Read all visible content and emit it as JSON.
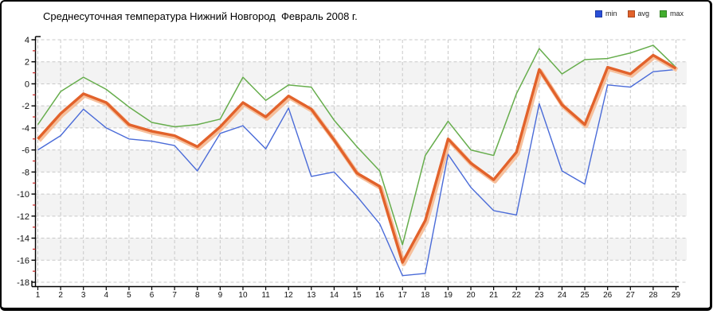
{
  "chart_title": "Среднесуточная температура Нижний Новгород  Февраль 2008 г.",
  "legend": {
    "items": [
      {
        "label": "min",
        "swatch_color": "#2a4fd8"
      },
      {
        "label": "avg",
        "swatch_color": "#e2622b"
      },
      {
        "label": "max",
        "swatch_color": "#42ae2e"
      }
    ]
  },
  "axes": {
    "y_tick_labels": [
      "4",
      "2",
      "0",
      "-2",
      "-4",
      "-6",
      "-8",
      "-10",
      "-12",
      "-14",
      "-16",
      "-18"
    ],
    "x_tick_labels": [
      "1",
      "2",
      "3",
      "4",
      "5",
      "6",
      "7",
      "8",
      "9",
      "10",
      "11",
      "12",
      "13",
      "14",
      "15",
      "16",
      "17",
      "18",
      "19",
      "20",
      "21",
      "22",
      "23",
      "24",
      "25",
      "26",
      "27",
      "28",
      "29"
    ]
  },
  "colors": {
    "min_line": "#4a6bd8",
    "avg_line": "#e2622b",
    "avg_halo": "#f6c09c",
    "max_line": "#66ad4c",
    "grid_line": "#c9c9c9",
    "band_gray": "#f3f3f3",
    "axis": "#000000",
    "minor_tick": "#cc2222"
  },
  "chart_data": {
    "type": "line",
    "title": "Среднесуточная температура Нижний Новгород  Февраль 2008 г.",
    "xlabel": "",
    "ylabel": "",
    "x": [
      1,
      2,
      3,
      4,
      5,
      6,
      7,
      8,
      9,
      10,
      11,
      12,
      13,
      14,
      15,
      16,
      17,
      18,
      19,
      20,
      21,
      22,
      23,
      24,
      25,
      26,
      27,
      28,
      29
    ],
    "ylim": [
      -18,
      4
    ],
    "ytick_interval": 2,
    "grid": true,
    "legend_position": "top-right",
    "series": [
      {
        "name": "min",
        "color": "#4a6bd8",
        "values": [
          -6.0,
          -4.7,
          -2.3,
          -4.0,
          -5.0,
          -5.2,
          -5.6,
          -7.9,
          -4.5,
          -3.8,
          -5.9,
          -2.2,
          -8.4,
          -8.0,
          -10.2,
          -12.7,
          -17.4,
          -17.2,
          -6.4,
          -9.4,
          -11.5,
          -11.9,
          -1.8,
          -7.9,
          -9.1,
          -0.1,
          -0.3,
          1.1,
          1.3
        ]
      },
      {
        "name": "avg",
        "color": "#e2622b",
        "values": [
          -5.0,
          -2.7,
          -0.9,
          -1.7,
          -3.7,
          -4.3,
          -4.7,
          -5.7,
          -3.9,
          -1.7,
          -3.0,
          -1.1,
          -2.3,
          -5.1,
          -8.1,
          -9.3,
          -16.2,
          -12.4,
          -5.0,
          -7.2,
          -8.7,
          -6.2,
          1.3,
          -1.9,
          -3.7,
          1.5,
          0.9,
          2.6,
          1.4
        ]
      },
      {
        "name": "max",
        "color": "#66ad4c",
        "values": [
          -3.7,
          -0.7,
          0.6,
          -0.5,
          -2.1,
          -3.5,
          -3.9,
          -3.7,
          -3.2,
          0.6,
          -1.5,
          -0.1,
          -0.3,
          -3.3,
          -5.7,
          -7.9,
          -14.6,
          -6.5,
          -3.4,
          -6.0,
          -6.5,
          -0.9,
          3.2,
          0.9,
          2.2,
          2.3,
          2.8,
          3.5,
          1.5
        ]
      }
    ]
  }
}
